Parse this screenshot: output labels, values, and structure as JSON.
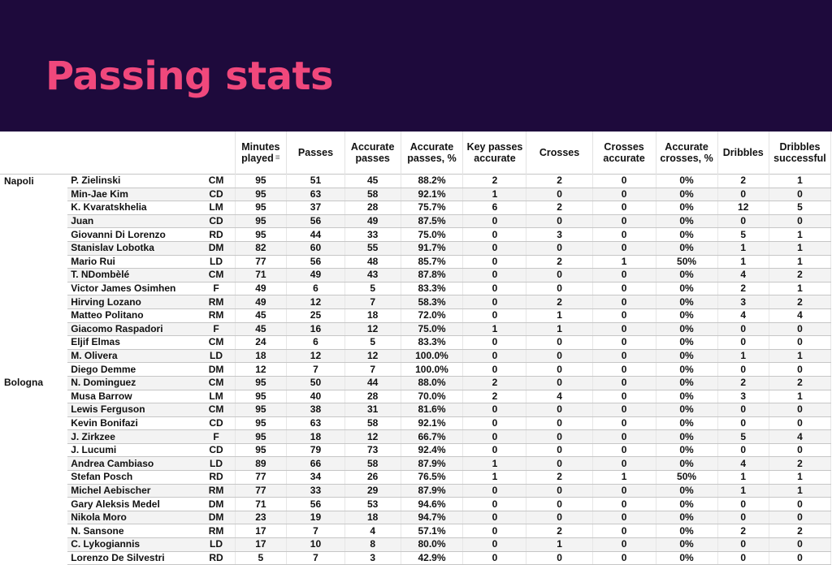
{
  "title": "Passing stats",
  "colors": {
    "banner": "#1e0a3c",
    "title": "#f0487c"
  },
  "headers": {
    "minutes": "Minutes played",
    "passes": "Passes",
    "accurate_passes": "Accurate passes",
    "accurate_passes_pct": "Accurate passes, %",
    "key_passes": "Key passes accurate",
    "crosses": "Crosses",
    "crosses_accurate": "Crosses accurate",
    "accurate_crosses_pct": "Accurate crosses, %",
    "dribbles": "Dribbles",
    "dribbles_successful": "Dribbles successful"
  },
  "sort_icon": "sort-icon",
  "rows": [
    {
      "team": "Napoli",
      "name": "P. Zielinski",
      "pos": "CM",
      "min": "95",
      "passes": "51",
      "acc": "45",
      "pct": "88.2%",
      "key": "2",
      "crosses": "2",
      "cacc": "0",
      "cpct": "0%",
      "drib": "2",
      "dsucc": "1"
    },
    {
      "team": "",
      "name": "Min-Jae Kim",
      "pos": "CD",
      "min": "95",
      "passes": "63",
      "acc": "58",
      "pct": "92.1%",
      "key": "1",
      "crosses": "0",
      "cacc": "0",
      "cpct": "0%",
      "drib": "0",
      "dsucc": "0"
    },
    {
      "team": "",
      "name": "K. Kvaratskhelia",
      "pos": "LM",
      "min": "95",
      "passes": "37",
      "acc": "28",
      "pct": "75.7%",
      "key": "6",
      "crosses": "2",
      "cacc": "0",
      "cpct": "0%",
      "drib": "12",
      "dsucc": "5"
    },
    {
      "team": "",
      "name": "Juan",
      "pos": "CD",
      "min": "95",
      "passes": "56",
      "acc": "49",
      "pct": "87.5%",
      "key": "0",
      "crosses": "0",
      "cacc": "0",
      "cpct": "0%",
      "drib": "0",
      "dsucc": "0"
    },
    {
      "team": "",
      "name": "Giovanni Di Lorenzo",
      "pos": "RD",
      "min": "95",
      "passes": "44",
      "acc": "33",
      "pct": "75.0%",
      "key": "0",
      "crosses": "3",
      "cacc": "0",
      "cpct": "0%",
      "drib": "5",
      "dsucc": "1"
    },
    {
      "team": "",
      "name": "Stanislav Lobotka",
      "pos": "DM",
      "min": "82",
      "passes": "60",
      "acc": "55",
      "pct": "91.7%",
      "key": "0",
      "crosses": "0",
      "cacc": "0",
      "cpct": "0%",
      "drib": "1",
      "dsucc": "1"
    },
    {
      "team": "",
      "name": "Mario Rui",
      "pos": "LD",
      "min": "77",
      "passes": "56",
      "acc": "48",
      "pct": "85.7%",
      "key": "0",
      "crosses": "2",
      "cacc": "1",
      "cpct": "50%",
      "drib": "1",
      "dsucc": "1"
    },
    {
      "team": "",
      "name": "T. NDombèlé",
      "pos": "CM",
      "min": "71",
      "passes": "49",
      "acc": "43",
      "pct": "87.8%",
      "key": "0",
      "crosses": "0",
      "cacc": "0",
      "cpct": "0%",
      "drib": "4",
      "dsucc": "2"
    },
    {
      "team": "",
      "name": "Victor James Osimhen",
      "pos": "F",
      "min": "49",
      "passes": "6",
      "acc": "5",
      "pct": "83.3%",
      "key": "0",
      "crosses": "0",
      "cacc": "0",
      "cpct": "0%",
      "drib": "2",
      "dsucc": "1"
    },
    {
      "team": "",
      "name": "Hirving Lozano",
      "pos": "RM",
      "min": "49",
      "passes": "12",
      "acc": "7",
      "pct": "58.3%",
      "key": "0",
      "crosses": "2",
      "cacc": "0",
      "cpct": "0%",
      "drib": "3",
      "dsucc": "2"
    },
    {
      "team": "",
      "name": "Matteo Politano",
      "pos": "RM",
      "min": "45",
      "passes": "25",
      "acc": "18",
      "pct": "72.0%",
      "key": "0",
      "crosses": "1",
      "cacc": "0",
      "cpct": "0%",
      "drib": "4",
      "dsucc": "4"
    },
    {
      "team": "",
      "name": "Giacomo Raspadori",
      "pos": "F",
      "min": "45",
      "passes": "16",
      "acc": "12",
      "pct": "75.0%",
      "key": "1",
      "crosses": "1",
      "cacc": "0",
      "cpct": "0%",
      "drib": "0",
      "dsucc": "0"
    },
    {
      "team": "",
      "name": "Eljif Elmas",
      "pos": "CM",
      "min": "24",
      "passes": "6",
      "acc": "5",
      "pct": "83.3%",
      "key": "0",
      "crosses": "0",
      "cacc": "0",
      "cpct": "0%",
      "drib": "0",
      "dsucc": "0"
    },
    {
      "team": "",
      "name": "M. Olivera",
      "pos": "LD",
      "min": "18",
      "passes": "12",
      "acc": "12",
      "pct": "100.0%",
      "key": "0",
      "crosses": "0",
      "cacc": "0",
      "cpct": "0%",
      "drib": "1",
      "dsucc": "1"
    },
    {
      "team": "",
      "name": "Diego Demme",
      "pos": "DM",
      "min": "12",
      "passes": "7",
      "acc": "7",
      "pct": "100.0%",
      "key": "0",
      "crosses": "0",
      "cacc": "0",
      "cpct": "0%",
      "drib": "0",
      "dsucc": "0"
    },
    {
      "team": "Bologna",
      "name": "N. Dominguez",
      "pos": "CM",
      "min": "95",
      "passes": "50",
      "acc": "44",
      "pct": "88.0%",
      "key": "2",
      "crosses": "0",
      "cacc": "0",
      "cpct": "0%",
      "drib": "2",
      "dsucc": "2"
    },
    {
      "team": "",
      "name": "Musa Barrow",
      "pos": "LM",
      "min": "95",
      "passes": "40",
      "acc": "28",
      "pct": "70.0%",
      "key": "2",
      "crosses": "4",
      "cacc": "0",
      "cpct": "0%",
      "drib": "3",
      "dsucc": "1"
    },
    {
      "team": "",
      "name": "Lewis Ferguson",
      "pos": "CM",
      "min": "95",
      "passes": "38",
      "acc": "31",
      "pct": "81.6%",
      "key": "0",
      "crosses": "0",
      "cacc": "0",
      "cpct": "0%",
      "drib": "0",
      "dsucc": "0"
    },
    {
      "team": "",
      "name": "Kevin Bonifazi",
      "pos": "CD",
      "min": "95",
      "passes": "63",
      "acc": "58",
      "pct": "92.1%",
      "key": "0",
      "crosses": "0",
      "cacc": "0",
      "cpct": "0%",
      "drib": "0",
      "dsucc": "0"
    },
    {
      "team": "",
      "name": "J. Zirkzee",
      "pos": "F",
      "min": "95",
      "passes": "18",
      "acc": "12",
      "pct": "66.7%",
      "key": "0",
      "crosses": "0",
      "cacc": "0",
      "cpct": "0%",
      "drib": "5",
      "dsucc": "4"
    },
    {
      "team": "",
      "name": "J. Lucumi",
      "pos": "CD",
      "min": "95",
      "passes": "79",
      "acc": "73",
      "pct": "92.4%",
      "key": "0",
      "crosses": "0",
      "cacc": "0",
      "cpct": "0%",
      "drib": "0",
      "dsucc": "0"
    },
    {
      "team": "",
      "name": "Andrea Cambiaso",
      "pos": "LD",
      "min": "89",
      "passes": "66",
      "acc": "58",
      "pct": "87.9%",
      "key": "1",
      "crosses": "0",
      "cacc": "0",
      "cpct": "0%",
      "drib": "4",
      "dsucc": "2"
    },
    {
      "team": "",
      "name": "Stefan Posch",
      "pos": "RD",
      "min": "77",
      "passes": "34",
      "acc": "26",
      "pct": "76.5%",
      "key": "1",
      "crosses": "2",
      "cacc": "1",
      "cpct": "50%",
      "drib": "1",
      "dsucc": "1"
    },
    {
      "team": "",
      "name": "Michel Aebischer",
      "pos": "RM",
      "min": "77",
      "passes": "33",
      "acc": "29",
      "pct": "87.9%",
      "key": "0",
      "crosses": "0",
      "cacc": "0",
      "cpct": "0%",
      "drib": "1",
      "dsucc": "1"
    },
    {
      "team": "",
      "name": "Gary Aleksis Medel",
      "pos": "DM",
      "min": "71",
      "passes": "56",
      "acc": "53",
      "pct": "94.6%",
      "key": "0",
      "crosses": "0",
      "cacc": "0",
      "cpct": "0%",
      "drib": "0",
      "dsucc": "0"
    },
    {
      "team": "",
      "name": "Nikola Moro",
      "pos": "DM",
      "min": "23",
      "passes": "19",
      "acc": "18",
      "pct": "94.7%",
      "key": "0",
      "crosses": "0",
      "cacc": "0",
      "cpct": "0%",
      "drib": "0",
      "dsucc": "0"
    },
    {
      "team": "",
      "name": "N. Sansone",
      "pos": "RM",
      "min": "17",
      "passes": "7",
      "acc": "4",
      "pct": "57.1%",
      "key": "0",
      "crosses": "2",
      "cacc": "0",
      "cpct": "0%",
      "drib": "2",
      "dsucc": "2"
    },
    {
      "team": "",
      "name": "C. Lykogiannis",
      "pos": "LD",
      "min": "17",
      "passes": "10",
      "acc": "8",
      "pct": "80.0%",
      "key": "0",
      "crosses": "1",
      "cacc": "0",
      "cpct": "0%",
      "drib": "0",
      "dsucc": "0"
    },
    {
      "team": "",
      "name": "Lorenzo De Silvestri",
      "pos": "RD",
      "min": "5",
      "passes": "7",
      "acc": "3",
      "pct": "42.9%",
      "key": "0",
      "crosses": "0",
      "cacc": "0",
      "cpct": "0%",
      "drib": "0",
      "dsucc": "0"
    }
  ]
}
